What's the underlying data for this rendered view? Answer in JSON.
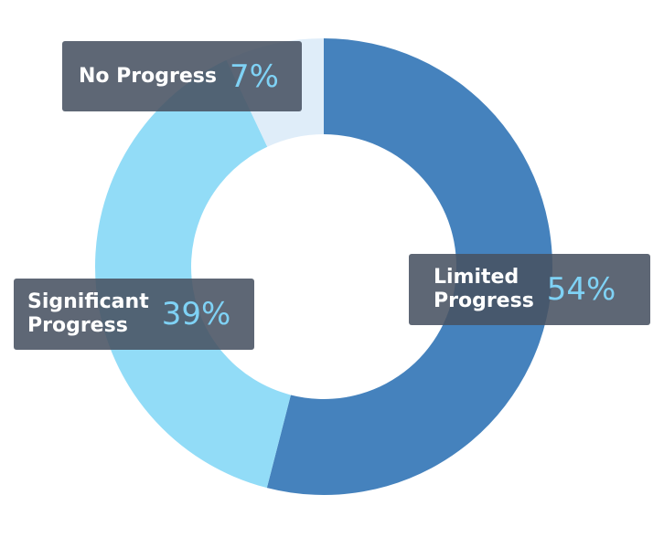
{
  "chart_data": {
    "type": "pie",
    "donut": true,
    "title": "",
    "slices": [
      {
        "label": "Limited Progress",
        "label_lines": [
          "Limited",
          "Progress"
        ],
        "value": 54,
        "display": "54%",
        "color": "#4582bd"
      },
      {
        "label": "Significant Progress",
        "label_lines": [
          "Significant",
          "Progress"
        ],
        "value": 39,
        "display": "39%",
        "color": "#92dcf7"
      },
      {
        "label": "No Progress",
        "label_lines": [
          "No Progress"
        ],
        "value": 7,
        "display": "7%",
        "color": "#dfedf9"
      }
    ],
    "start_angle_deg": 0,
    "direction": "clockwise",
    "legend": "none",
    "percent_color": "#7fd2f5"
  }
}
